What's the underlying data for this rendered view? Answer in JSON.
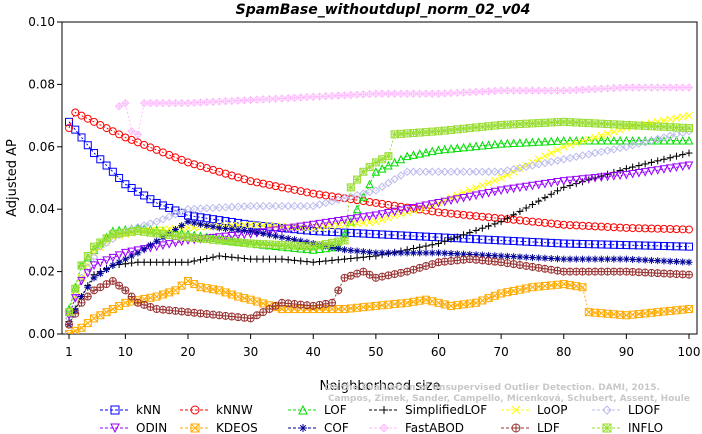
{
  "chart_data": {
    "type": "line",
    "title": "SpamBase_withoutdupl_norm_02_v04",
    "xlabel": "Neighborhood size",
    "ylabel": "Adjusted AP",
    "xlim": [
      1,
      100
    ],
    "ylim": [
      0,
      0.1
    ],
    "x_ticks": [
      1,
      10,
      20,
      30,
      40,
      50,
      60,
      70,
      80,
      90,
      100
    ],
    "y_ticks": [
      "0.00",
      "0.02",
      "0.04",
      "0.06",
      "0.08",
      "0.10"
    ],
    "grid": false,
    "legend_position": "bottom",
    "watermark": "Campos, Zimek, Sander, Campello, Micenková, Schubert, Assent, Houle",
    "watermark_title": "On the Evaluation of Unsupervised Outlier Detection. DAMI, 2015.",
    "series": [
      {
        "name": "kNN",
        "color": "#0000FF",
        "marker": "square",
        "knots": [
          [
            1,
            0.068
          ],
          [
            3,
            0.063
          ],
          [
            5,
            0.058
          ],
          [
            10,
            0.048
          ],
          [
            15,
            0.042
          ],
          [
            20,
            0.038
          ],
          [
            30,
            0.035
          ],
          [
            40,
            0.033
          ],
          [
            60,
            0.031
          ],
          [
            80,
            0.029
          ],
          [
            100,
            0.028
          ]
        ]
      },
      {
        "name": "kNNW",
        "color": "#FF0000",
        "marker": "circle",
        "knots": [
          [
            1,
            0.066
          ],
          [
            2,
            0.071
          ],
          [
            5,
            0.068
          ],
          [
            10,
            0.063
          ],
          [
            20,
            0.055
          ],
          [
            30,
            0.049
          ],
          [
            40,
            0.045
          ],
          [
            50,
            0.042
          ],
          [
            60,
            0.039
          ],
          [
            70,
            0.037
          ],
          [
            80,
            0.035
          ],
          [
            90,
            0.034
          ],
          [
            100,
            0.0335
          ]
        ]
      },
      {
        "name": "LOF",
        "color": "#00DD00",
        "marker": "triangle",
        "knots": [
          [
            1,
            0.008
          ],
          [
            3,
            0.022
          ],
          [
            5,
            0.027
          ],
          [
            8,
            0.033
          ],
          [
            12,
            0.034
          ],
          [
            20,
            0.032
          ],
          [
            30,
            0.029
          ],
          [
            40,
            0.027
          ],
          [
            44,
            0.028
          ],
          [
            47,
            0.04
          ],
          [
            50,
            0.052
          ],
          [
            55,
            0.057
          ],
          [
            60,
            0.059
          ],
          [
            70,
            0.061
          ],
          [
            80,
            0.062
          ],
          [
            90,
            0.062
          ],
          [
            100,
            0.062
          ]
        ]
      },
      {
        "name": "SimplifiedLOF",
        "color": "#000000",
        "marker": "plus",
        "knots": [
          [
            1,
            0.004
          ],
          [
            3,
            0.012
          ],
          [
            5,
            0.019
          ],
          [
            8,
            0.022
          ],
          [
            12,
            0.023
          ],
          [
            20,
            0.023
          ],
          [
            25,
            0.025
          ],
          [
            30,
            0.024
          ],
          [
            35,
            0.024
          ],
          [
            40,
            0.023
          ],
          [
            50,
            0.025
          ],
          [
            60,
            0.029
          ],
          [
            70,
            0.036
          ],
          [
            80,
            0.047
          ],
          [
            90,
            0.053
          ],
          [
            100,
            0.058
          ]
        ]
      },
      {
        "name": "LoOP",
        "color": "#FFFF00",
        "marker": "x",
        "knots": [
          [
            1,
            0.006
          ],
          [
            3,
            0.018
          ],
          [
            5,
            0.026
          ],
          [
            8,
            0.031
          ],
          [
            12,
            0.033
          ],
          [
            20,
            0.034
          ],
          [
            30,
            0.035
          ],
          [
            40,
            0.034
          ],
          [
            50,
            0.036
          ],
          [
            60,
            0.042
          ],
          [
            70,
            0.05
          ],
          [
            80,
            0.06
          ],
          [
            90,
            0.066
          ],
          [
            100,
            0.07
          ]
        ]
      },
      {
        "name": "LDOF",
        "color": "#BBBBEE",
        "marker": "diamond",
        "knots": [
          [
            1,
            0.005
          ],
          [
            3,
            0.018
          ],
          [
            6,
            0.028
          ],
          [
            10,
            0.033
          ],
          [
            15,
            0.036
          ],
          [
            20,
            0.04
          ],
          [
            30,
            0.041
          ],
          [
            40,
            0.041
          ],
          [
            50,
            0.046
          ],
          [
            55,
            0.052
          ],
          [
            60,
            0.052
          ],
          [
            70,
            0.052
          ],
          [
            80,
            0.056
          ],
          [
            90,
            0.06
          ],
          [
            100,
            0.065
          ]
        ]
      },
      {
        "name": "ODIN",
        "color": "#9900FF",
        "marker": "triangle-down",
        "knots": [
          [
            1,
            0.006
          ],
          [
            3,
            0.017
          ],
          [
            5,
            0.022
          ],
          [
            10,
            0.026
          ],
          [
            15,
            0.028
          ],
          [
            20,
            0.03
          ],
          [
            30,
            0.032
          ],
          [
            40,
            0.035
          ],
          [
            50,
            0.038
          ],
          [
            60,
            0.042
          ],
          [
            70,
            0.046
          ],
          [
            80,
            0.049
          ],
          [
            90,
            0.051
          ],
          [
            100,
            0.054
          ]
        ]
      },
      {
        "name": "KDEOS",
        "color": "#FFAA00",
        "marker": "square-x",
        "knots": [
          [
            1,
            0.0
          ],
          [
            3,
            0.002
          ],
          [
            5,
            0.005
          ],
          [
            8,
            0.008
          ],
          [
            10,
            0.01
          ],
          [
            15,
            0.012
          ],
          [
            18,
            0.014
          ],
          [
            20,
            0.017
          ],
          [
            22,
            0.015
          ],
          [
            25,
            0.014
          ],
          [
            28,
            0.012
          ],
          [
            30,
            0.011
          ],
          [
            35,
            0.008
          ],
          [
            40,
            0.008
          ],
          [
            45,
            0.008
          ],
          [
            50,
            0.009
          ],
          [
            55,
            0.01
          ],
          [
            58,
            0.011
          ],
          [
            62,
            0.009
          ],
          [
            66,
            0.01
          ],
          [
            70,
            0.013
          ],
          [
            75,
            0.015
          ],
          [
            80,
            0.016
          ],
          [
            83,
            0.015
          ],
          [
            84,
            0.007
          ],
          [
            90,
            0.006
          ],
          [
            100,
            0.008
          ]
        ]
      },
      {
        "name": "COF",
        "color": "#000099",
        "marker": "asterisk",
        "knots": [
          [
            1,
            0.003
          ],
          [
            3,
            0.012
          ],
          [
            5,
            0.018
          ],
          [
            8,
            0.022
          ],
          [
            12,
            0.026
          ],
          [
            16,
            0.031
          ],
          [
            20,
            0.036
          ],
          [
            25,
            0.034
          ],
          [
            30,
            0.033
          ],
          [
            35,
            0.031
          ],
          [
            40,
            0.029
          ],
          [
            45,
            0.027
          ],
          [
            50,
            0.026
          ],
          [
            60,
            0.026
          ],
          [
            70,
            0.025
          ],
          [
            80,
            0.024
          ],
          [
            90,
            0.024
          ],
          [
            100,
            0.023
          ]
        ]
      },
      {
        "name": "FastABOD",
        "color": "#FFBBFF",
        "marker": "diamond-plus",
        "knots": [
          [
            9,
            0.073
          ],
          [
            10,
            0.074
          ],
          [
            11,
            0.065
          ],
          [
            12,
            0.064
          ],
          [
            13,
            0.074
          ],
          [
            20,
            0.074
          ],
          [
            30,
            0.075
          ],
          [
            40,
            0.076
          ],
          [
            50,
            0.077
          ],
          [
            60,
            0.077
          ],
          [
            70,
            0.078
          ],
          [
            80,
            0.078
          ],
          [
            90,
            0.079
          ],
          [
            100,
            0.079
          ]
        ]
      },
      {
        "name": "LDF",
        "color": "#993333",
        "marker": "circle-plus",
        "knots": [
          [
            1,
            0.003
          ],
          [
            3,
            0.01
          ],
          [
            5,
            0.014
          ],
          [
            8,
            0.017
          ],
          [
            10,
            0.014
          ],
          [
            12,
            0.01
          ],
          [
            15,
            0.008
          ],
          [
            20,
            0.007
          ],
          [
            25,
            0.006
          ],
          [
            30,
            0.005
          ],
          [
            33,
            0.008
          ],
          [
            35,
            0.01
          ],
          [
            40,
            0.009
          ],
          [
            43,
            0.01
          ],
          [
            45,
            0.018
          ],
          [
            48,
            0.02
          ],
          [
            50,
            0.018
          ],
          [
            55,
            0.02
          ],
          [
            60,
            0.023
          ],
          [
            65,
            0.024
          ],
          [
            70,
            0.023
          ],
          [
            80,
            0.02
          ],
          [
            90,
            0.02
          ],
          [
            100,
            0.019
          ]
        ]
      },
      {
        "name": "INFLO",
        "color": "#99DD33",
        "marker": "square-star",
        "knots": [
          [
            1,
            0.007
          ],
          [
            3,
            0.022
          ],
          [
            5,
            0.028
          ],
          [
            8,
            0.032
          ],
          [
            12,
            0.033
          ],
          [
            20,
            0.031
          ],
          [
            30,
            0.029
          ],
          [
            40,
            0.028
          ],
          [
            45,
            0.03
          ],
          [
            46,
            0.047
          ],
          [
            48,
            0.052
          ],
          [
            50,
            0.055
          ],
          [
            52,
            0.057
          ],
          [
            53,
            0.064
          ],
          [
            60,
            0.065
          ],
          [
            70,
            0.067
          ],
          [
            80,
            0.068
          ],
          [
            90,
            0.067
          ],
          [
            100,
            0.066
          ]
        ]
      }
    ]
  }
}
